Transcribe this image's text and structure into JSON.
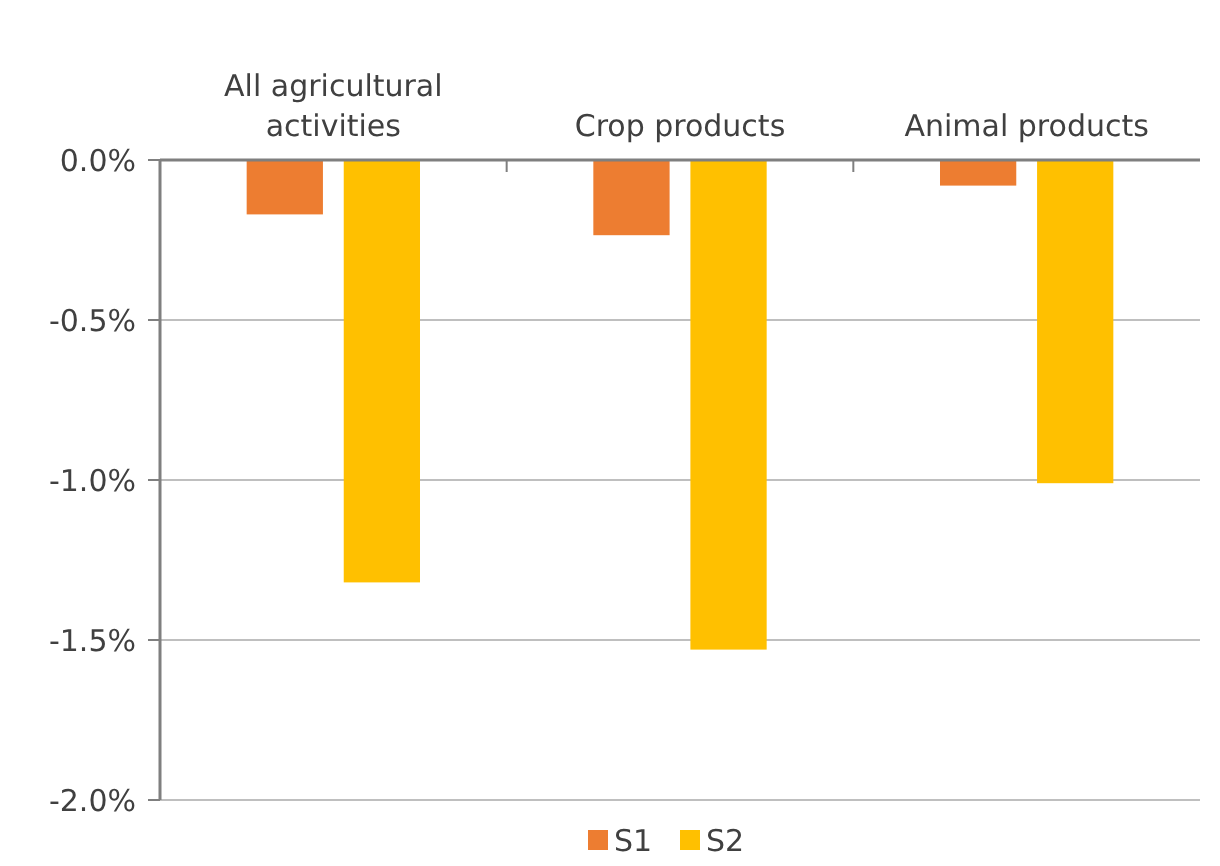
{
  "chart_data": {
    "type": "bar",
    "categories": [
      "All agricultural activities",
      "Crop products",
      "Animal products"
    ],
    "series": [
      {
        "name": "S1",
        "color": "#ed7d31",
        "values": [
          -0.17,
          -0.235,
          -0.08
        ]
      },
      {
        "name": "S2",
        "color": "#ffc000",
        "values": [
          -1.32,
          -1.53,
          -1.01
        ]
      }
    ],
    "ylim": [
      -2,
      0
    ],
    "yticks": [
      {
        "value": 0,
        "label": "0.0%"
      },
      {
        "value": -0.5,
        "label": "-0.5%"
      },
      {
        "value": -1,
        "label": "-1.0%"
      },
      {
        "value": -1.5,
        "label": "-1.5%"
      },
      {
        "value": -2,
        "label": "-2.0%"
      }
    ],
    "grid": "y",
    "legend": "bottom"
  }
}
